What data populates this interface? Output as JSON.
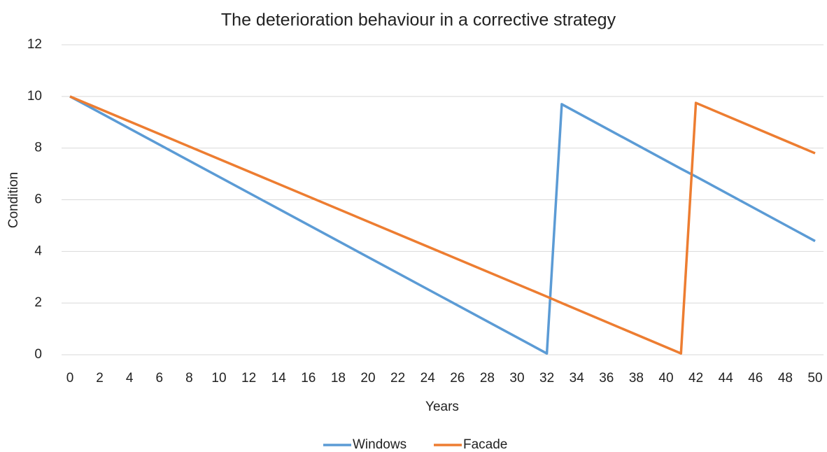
{
  "chart_data": {
    "type": "line",
    "title": "The deterioration behaviour in a corrective strategy",
    "x_label": "Years",
    "y_label": "Condition",
    "x": [
      0,
      32,
      33,
      41,
      42,
      50
    ],
    "series": [
      {
        "name": "Windows",
        "color": "#5b9bd5",
        "values": [
          10,
          0.05,
          9.7,
          7.2,
          6.9,
          4.4
        ]
      },
      {
        "name": "Facade",
        "color": "#ed7d31",
        "values": [
          10,
          2.25,
          2.0,
          0.05,
          9.75,
          7.8
        ]
      }
    ],
    "xlim": [
      0,
      50
    ],
    "xticks": [
      0,
      2,
      4,
      6,
      8,
      10,
      12,
      14,
      16,
      18,
      20,
      22,
      24,
      26,
      28,
      30,
      32,
      34,
      36,
      38,
      40,
      42,
      44,
      46,
      48,
      50
    ],
    "ylim": [
      0,
      12
    ],
    "yticks": [
      0,
      2,
      4,
      6,
      8,
      10,
      12
    ],
    "grid": true,
    "legend": "bottom"
  }
}
